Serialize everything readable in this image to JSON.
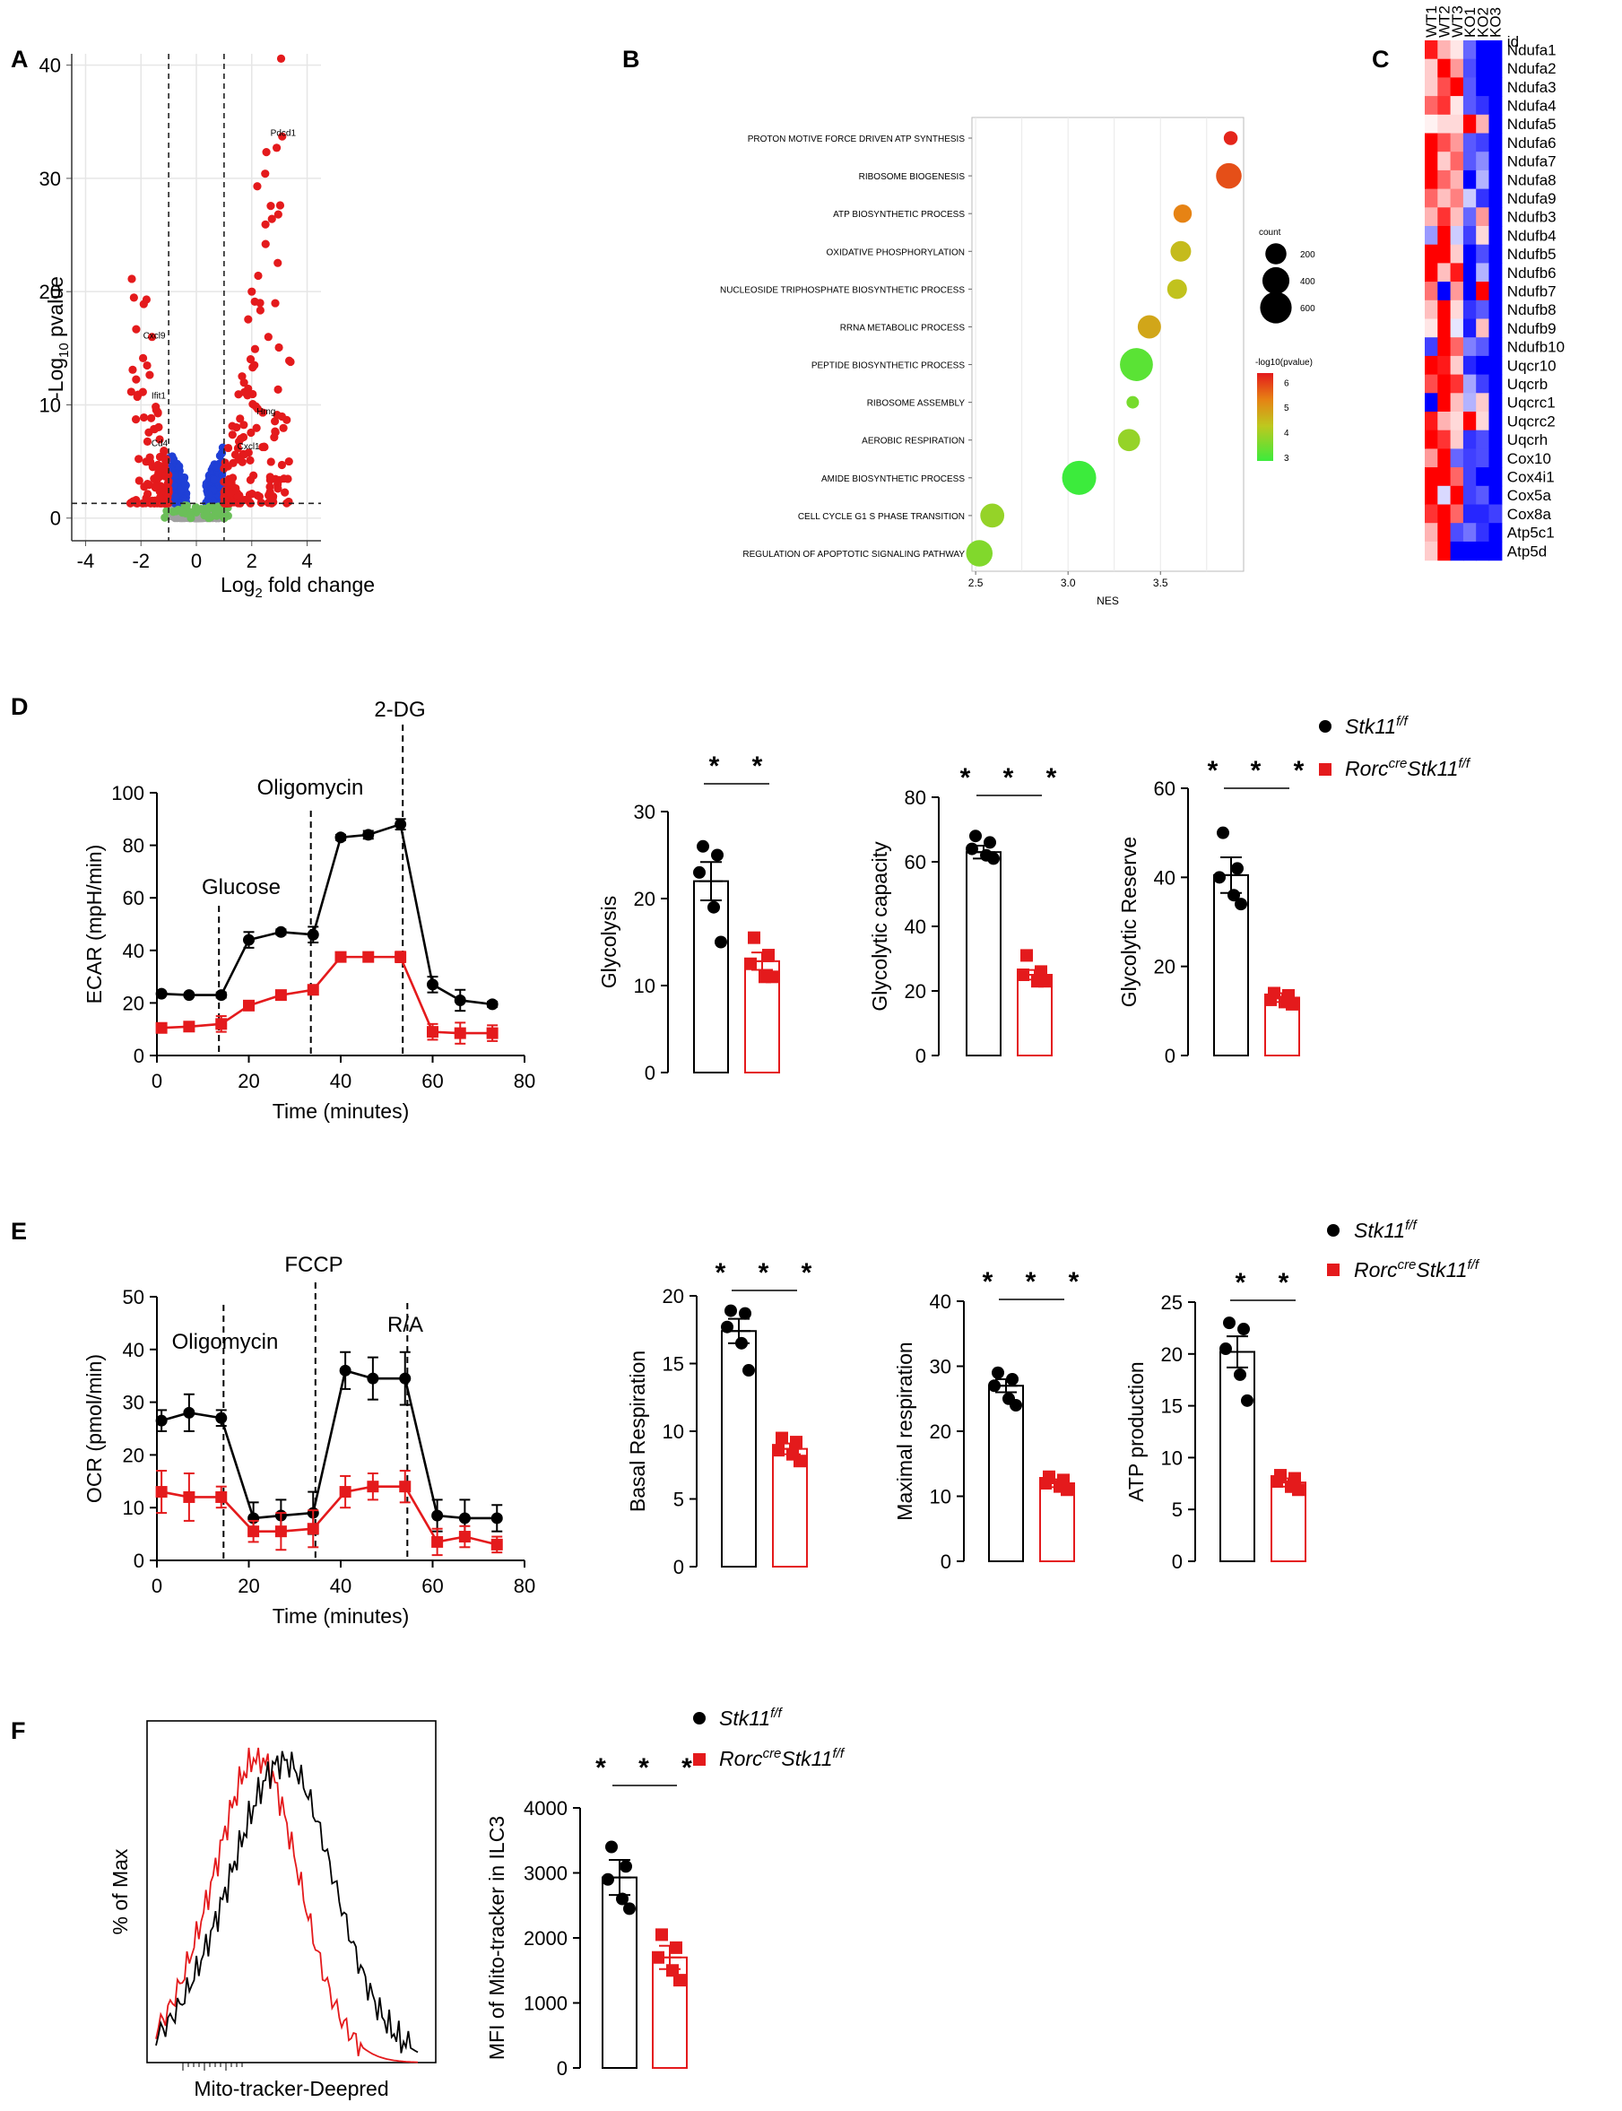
{
  "panels": {
    "A": "A",
    "B": "B",
    "C": "C",
    "D": "D",
    "E": "E",
    "F": "F"
  },
  "colors": {
    "wt": "#000000",
    "ko": "#e41a1c",
    "up": "#e41a1c",
    "down": "#1f3fd6",
    "ns": "#a0a0a0",
    "green": "#6bbf59"
  },
  "legend": {
    "wt_gene": "Stk11",
    "wt_sup": "f/f",
    "ko_pre": "Rorc",
    "ko_pre_sup": "cre",
    "ko_gene": "Stk11",
    "ko_sup": "f/f"
  },
  "chart_data": [
    {
      "id": "volcano",
      "type": "scatter",
      "panel": "A",
      "xlabel_main": "Log",
      "xlabel_sub": "2",
      "xlabel_rest": " fold change",
      "ylabel_main": "-Log",
      "ylabel_sub": "10",
      "ylabel_rest": " pvalue",
      "xlim": [
        -4.5,
        4.5
      ],
      "ylim": [
        -2,
        41
      ],
      "xticks": [
        -4,
        -2,
        0,
        2,
        4
      ],
      "yticks": [
        0,
        10,
        20,
        30,
        40
      ],
      "fc_cut": [
        -1,
        1
      ],
      "p_cut": 1.3,
      "labels": [
        {
          "text": "Pdcd1",
          "x": 3.0,
          "y": 33.6
        },
        {
          "text": "Cxcl9",
          "x": -1.6,
          "y": 15.7
        },
        {
          "text": "Hmg",
          "x": 2.5,
          "y": 9.0
        },
        {
          "text": "Cxcl1",
          "x": 1.8,
          "y": 5.9
        },
        {
          "text": "Ifit1",
          "x": -1.3,
          "y": 10.4
        },
        {
          "text": "Cd4",
          "x": -1.3,
          "y": 6.2
        }
      ],
      "highlight_points": [
        {
          "x": 2.9,
          "y": 32.7
        },
        {
          "x": 3.1,
          "y": 33.7
        },
        {
          "x": 2.2,
          "y": 29.3
        },
        {
          "x": 2.5,
          "y": 24.2
        },
        {
          "x": -1.8,
          "y": 19.3
        },
        {
          "x": -1.9,
          "y": 18.9
        },
        {
          "x": 2.0,
          "y": 20.0
        },
        {
          "x": 2.3,
          "y": 19.0
        },
        {
          "x": 3.4,
          "y": 13.8
        },
        {
          "x": -1.6,
          "y": 16.0
        },
        {
          "x": -2.3,
          "y": 13.1
        },
        {
          "x": 2.6,
          "y": 16.0
        }
      ]
    },
    {
      "id": "gsea",
      "type": "scatter",
      "panel": "B",
      "xlabel": "NES",
      "xticks": [
        2.5,
        3.0,
        3.5
      ],
      "xlim": [
        2.48,
        3.95
      ],
      "size_title": "count",
      "size_values": [
        200,
        400,
        600
      ],
      "color_title": "-log10(pvalue)",
      "color_ticks": [
        3,
        4,
        5,
        6
      ],
      "terms": [
        {
          "name": "PROTON MOTIVE FORCE DRIVEN ATP SYNTHESIS",
          "nes": 3.88,
          "count": 40,
          "logp": 6.2
        },
        {
          "name": "RIBOSOME BIOGENESIS",
          "nes": 3.87,
          "count": 300,
          "logp": 5.8
        },
        {
          "name": "ATP BIOSYNTHETIC PROCESS",
          "nes": 3.62,
          "count": 110,
          "logp": 5.3
        },
        {
          "name": "OXIDATIVE PHOSPHORYLATION",
          "nes": 3.61,
          "count": 160,
          "logp": 4.5
        },
        {
          "name": "NUCLEOSIDE TRIPHOSPHATE BIOSYNTHETIC PROCESS",
          "nes": 3.59,
          "count": 140,
          "logp": 4.4
        },
        {
          "name": "RRNA METABOLIC PROCESS",
          "nes": 3.44,
          "count": 230,
          "logp": 4.8
        },
        {
          "name": "PEPTIDE BIOSYNTHETIC PROCESS",
          "nes": 3.37,
          "count": 590,
          "logp": 3.3
        },
        {
          "name": "RIBOSOME ASSEMBLY",
          "nes": 3.35,
          "count": 25,
          "logp": 3.6
        },
        {
          "name": "AEROBIC RESPIRATION",
          "nes": 3.33,
          "count": 200,
          "logp": 3.9
        },
        {
          "name": "AMIDE BIOSYNTHETIC PROCESS",
          "nes": 3.06,
          "count": 640,
          "logp": 3.0
        },
        {
          "name": "CELL CYCLE G1 S PHASE TRANSITION",
          "nes": 2.59,
          "count": 250,
          "logp": 3.9
        },
        {
          "name": "REGULATION OF APOPTOTIC SIGNALING PATHWAY",
          "nes": 2.52,
          "count": 330,
          "logp": 3.7
        }
      ]
    },
    {
      "id": "heatmap",
      "type": "heatmap",
      "panel": "C",
      "columns": [
        "WT1",
        "WT2",
        "WT3",
        "KO1",
        "KO2",
        "KO3"
      ],
      "id_label": "id",
      "rows": [
        "Ndufa1",
        "Ndufa2",
        "Ndufa3",
        "Ndufa4",
        "Ndufa5",
        "Ndufa6",
        "Ndufa7",
        "Ndufa8",
        "Ndufa9",
        "Ndufb3",
        "Ndufb4",
        "Ndufb5",
        "Ndufb6",
        "Ndufb7",
        "Ndufb8",
        "Ndufb9",
        "Ndufb10",
        "Uqcr10",
        "Uqcrb",
        "Uqcrc1",
        "Uqcrc2",
        "Uqcrh",
        "Cox10",
        "Cox4i1",
        "Cox5a",
        "Cox8a",
        "Atp5c1",
        "Atp5d"
      ],
      "values": [
        [
          1.8,
          0.6,
          0.2,
          -1.2,
          -2,
          -2
        ],
        [
          0.4,
          2,
          0.8,
          -1.4,
          -2,
          -2
        ],
        [
          0.4,
          1.4,
          2,
          -1.3,
          -2,
          -2
        ],
        [
          1.2,
          1.6,
          0.2,
          -1.3,
          -1.6,
          -2
        ],
        [
          0.1,
          0.3,
          0.3,
          2,
          0.6,
          -2
        ],
        [
          2,
          1.4,
          0.8,
          -1.3,
          -1.5,
          -2
        ],
        [
          2,
          0.4,
          1.2,
          -1.3,
          -0.9,
          -2
        ],
        [
          2,
          1.2,
          0.6,
          -2,
          -0.6,
          -2
        ],
        [
          1.2,
          0.5,
          1,
          -0.4,
          -1.6,
          -2
        ],
        [
          0.6,
          1.6,
          0.5,
          -1.2,
          0.8,
          -2
        ],
        [
          -0.8,
          2,
          -0.4,
          -1.5,
          0.3,
          -2
        ],
        [
          2,
          2,
          0.4,
          -2,
          -1.4,
          -2
        ],
        [
          2,
          0.5,
          1.8,
          -2,
          -0.6,
          -2
        ],
        [
          1.1,
          -2,
          0.8,
          -2,
          2,
          -2
        ],
        [
          0.5,
          2,
          0.3,
          -1.6,
          -1.3,
          -2
        ],
        [
          0.2,
          2,
          -0.2,
          -1.8,
          0.5,
          -2
        ],
        [
          -1.5,
          2,
          1.2,
          -1,
          -1.3,
          -2
        ],
        [
          2,
          1.8,
          0.4,
          -1.7,
          -2,
          -2
        ],
        [
          1.4,
          2,
          1.6,
          -0.7,
          -1.5,
          -2
        ],
        [
          -2,
          2,
          0.5,
          -0.6,
          0.4,
          -2
        ],
        [
          1.8,
          0.6,
          0.3,
          2,
          0.3,
          -2
        ],
        [
          2,
          1.6,
          0.4,
          -1.6,
          -1.4,
          -2
        ],
        [
          0.8,
          2,
          -1.2,
          -1.5,
          -1.4,
          -2
        ],
        [
          2,
          2,
          1.2,
          -1.5,
          -2,
          -2
        ],
        [
          2,
          -0.3,
          2,
          -1.5,
          -1.3,
          -2
        ],
        [
          1.6,
          2,
          1.2,
          -1.7,
          -1.7,
          -1.5
        ],
        [
          0.6,
          2,
          -1.4,
          -1.1,
          -1.6,
          -2
        ],
        [
          0.4,
          2,
          -2,
          -2,
          -2,
          -2
        ]
      ]
    },
    {
      "id": "ecar",
      "type": "line",
      "panel": "D",
      "xlabel": "Time (minutes)",
      "ylabel": "ECAR (mpH/min)",
      "xlim": [
        0,
        80
      ],
      "ylim": [
        0,
        100
      ],
      "xticks": [
        0,
        20,
        40,
        60,
        80
      ],
      "yticks": [
        0,
        20,
        40,
        60,
        80,
        100
      ],
      "injections": [
        {
          "label": "Glucose",
          "x": 13.5
        },
        {
          "label": "Oligomycin",
          "x": 33.5
        },
        {
          "label": "2-DG",
          "x": 53.5
        }
      ],
      "series": [
        {
          "name": "wt",
          "x": [
            1,
            7,
            14,
            20,
            27,
            34,
            40,
            46,
            53,
            60,
            66,
            73
          ],
          "y": [
            23.5,
            23,
            23,
            44,
            47,
            46,
            83,
            84,
            88,
            27,
            21,
            19.5
          ],
          "err": [
            0.5,
            0.5,
            1,
            3,
            1,
            3,
            1,
            1.5,
            2,
            3,
            4,
            1
          ]
        },
        {
          "name": "ko",
          "x": [
            1,
            7,
            14,
            20,
            27,
            34,
            40,
            46,
            53,
            60,
            66,
            73
          ],
          "y": [
            10.5,
            11,
            12,
            19,
            23,
            25,
            37.5,
            37.5,
            37.5,
            9,
            8.5,
            8.5
          ],
          "err": [
            1,
            1,
            3,
            1,
            1,
            1,
            1,
            1,
            2,
            3,
            4,
            3
          ]
        }
      ]
    },
    {
      "id": "glycolysis",
      "type": "bar",
      "panel": "D",
      "ylabel": "Glycolysis",
      "yticks": [
        0,
        10,
        20,
        30
      ],
      "ylim": [
        0,
        30
      ],
      "sig": "* *",
      "groups": [
        {
          "name": "wt",
          "mean": 22,
          "sem": 2.2,
          "points": [
            26,
            25,
            23,
            19,
            15
          ]
        },
        {
          "name": "ko",
          "mean": 12.8,
          "sem": 1,
          "points": [
            15.5,
            13.5,
            12.5,
            11,
            11
          ]
        }
      ]
    },
    {
      "id": "glyco_capacity",
      "type": "bar",
      "panel": "D",
      "ylabel": "Glycolytic capacity",
      "yticks": [
        0,
        20,
        40,
        60,
        80
      ],
      "ylim": [
        0,
        80
      ],
      "sig": "* * *",
      "groups": [
        {
          "name": "wt",
          "mean": 63,
          "sem": 2,
          "points": [
            68,
            66,
            64,
            62,
            61
          ]
        },
        {
          "name": "ko",
          "mean": 25,
          "sem": 1.5,
          "points": [
            31,
            26,
            25,
            23,
            23
          ]
        }
      ]
    },
    {
      "id": "glyco_reserve",
      "type": "bar",
      "panel": "D",
      "ylabel": "Glycolytic Reserve",
      "yticks": [
        0,
        20,
        40,
        60
      ],
      "ylim": [
        0,
        60
      ],
      "sig": "* * *",
      "groups": [
        {
          "name": "wt",
          "mean": 40.5,
          "sem": 4,
          "points": [
            50,
            42,
            40,
            36,
            34
          ]
        },
        {
          "name": "ko",
          "mean": 13,
          "sem": 1,
          "points": [
            14,
            13.5,
            12.5,
            12,
            11.5
          ]
        }
      ]
    },
    {
      "id": "ocr",
      "type": "line",
      "panel": "E",
      "xlabel": "Time (minutes)",
      "ylabel": "OCR (pmol/min)",
      "xlim": [
        0,
        80
      ],
      "ylim": [
        0,
        50
      ],
      "xticks": [
        0,
        20,
        40,
        60,
        80
      ],
      "yticks": [
        0,
        10,
        20,
        30,
        40,
        50
      ],
      "injections": [
        {
          "label": "Oligomycin",
          "x": 14.5
        },
        {
          "label": "FCCP",
          "x": 34.5
        },
        {
          "label": "R/A",
          "x": 54.5
        }
      ],
      "series": [
        {
          "name": "wt",
          "x": [
            1,
            7,
            14,
            21,
            27,
            34,
            41,
            47,
            54,
            61,
            67,
            74
          ],
          "y": [
            26.5,
            28,
            27,
            8,
            8.5,
            9,
            36,
            34.5,
            34.5,
            8.5,
            8,
            8
          ],
          "err": [
            2,
            3.5,
            1.5,
            3,
            3,
            4,
            3.5,
            4,
            5,
            3,
            3.5,
            2.5
          ]
        },
        {
          "name": "ko",
          "x": [
            1,
            7,
            14,
            21,
            27,
            34,
            41,
            47,
            54,
            61,
            67,
            74
          ],
          "y": [
            13,
            12,
            12,
            5.5,
            5.5,
            6,
            13,
            14,
            14,
            3.5,
            4.5,
            3
          ],
          "err": [
            4,
            4.5,
            2,
            2,
            3.5,
            3.5,
            3,
            2.5,
            3,
            2.5,
            2,
            1.5
          ]
        }
      ]
    },
    {
      "id": "basal_resp",
      "type": "bar",
      "panel": "E",
      "ylabel": "Basal Respiration",
      "yticks": [
        0,
        5,
        10,
        15,
        20
      ],
      "ylim": [
        0,
        20
      ],
      "sig": "* * *",
      "groups": [
        {
          "name": "wt",
          "mean": 17.4,
          "sem": 0.9,
          "points": [
            18.9,
            18.7,
            17.7,
            16.5,
            14.5
          ]
        },
        {
          "name": "ko",
          "mean": 8.7,
          "sem": 0.4,
          "points": [
            9.5,
            9.2,
            8.6,
            8.3,
            7.8
          ]
        }
      ]
    },
    {
      "id": "max_resp",
      "type": "bar",
      "panel": "E",
      "ylabel": "Maximal respiration",
      "yticks": [
        0,
        10,
        20,
        30,
        40
      ],
      "ylim": [
        0,
        40
      ],
      "sig": "* * *",
      "groups": [
        {
          "name": "wt",
          "mean": 27,
          "sem": 1,
          "points": [
            29,
            28,
            27,
            25,
            24
          ]
        },
        {
          "name": "ko",
          "mean": 12,
          "sem": 0.6,
          "points": [
            13,
            12.5,
            12,
            11.5,
            11
          ]
        }
      ]
    },
    {
      "id": "atp_prod",
      "type": "bar",
      "panel": "E",
      "ylabel": "ATP production",
      "yticks": [
        0,
        5,
        10,
        15,
        20,
        25
      ],
      "ylim": [
        0,
        25
      ],
      "sig": "* *",
      "groups": [
        {
          "name": "wt",
          "mean": 20.2,
          "sem": 1.5,
          "points": [
            23,
            22.4,
            20.5,
            18,
            15.5
          ]
        },
        {
          "name": "ko",
          "mean": 7.6,
          "sem": 0.4,
          "points": [
            8.3,
            8,
            7.7,
            7.2,
            6.9
          ]
        }
      ]
    },
    {
      "id": "histogram",
      "type": "line",
      "panel": "F",
      "xlabel": "Mito-tracker-Deepred",
      "ylabel": "% of Max"
    },
    {
      "id": "mfi",
      "type": "bar",
      "panel": "F",
      "ylabel": "MFI of Mito-tracker in ILC3",
      "yticks": [
        0,
        1000,
        2000,
        3000,
        4000
      ],
      "ylim": [
        0,
        4000
      ],
      "sig": "* * *",
      "groups": [
        {
          "name": "wt",
          "mean": 2930,
          "sem": 270,
          "points": [
            3400,
            3100,
            2900,
            2600,
            2450
          ]
        },
        {
          "name": "ko",
          "mean": 1700,
          "sem": 180,
          "points": [
            2050,
            1850,
            1700,
            1500,
            1350
          ]
        }
      ]
    }
  ]
}
